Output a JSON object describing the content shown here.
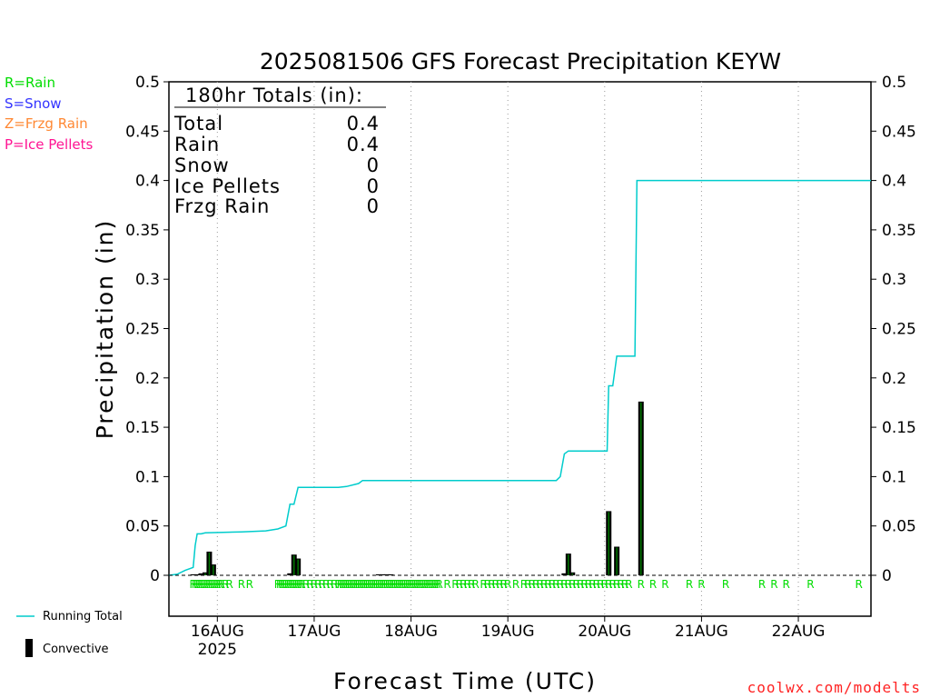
{
  "chart_data": {
    "type": "bar",
    "title": "2025081506 GFS Forecast Precipitation KEYW",
    "xlabel": "Forecast Time (UTC)",
    "ylabel": "Precipitation (in)",
    "ylim": [
      0,
      0.5
    ],
    "yticks": [
      "0",
      "0.05",
      "0.1",
      "0.15",
      "0.2",
      "0.25",
      "0.3",
      "0.35",
      "0.4",
      "0.45",
      "0.5"
    ],
    "xlim_hours": [
      6,
      180
    ],
    "x_units": "forecast hours from 2025-08-15 06 UTC",
    "xticks": [
      {
        "hour": 18,
        "label": "16AUG",
        "sublabel": "2025"
      },
      {
        "hour": 42,
        "label": "17AUG",
        "sublabel": ""
      },
      {
        "hour": 66,
        "label": "18AUG",
        "sublabel": ""
      },
      {
        "hour": 90,
        "label": "19AUG",
        "sublabel": ""
      },
      {
        "hour": 114,
        "label": "20AUG",
        "sublabel": ""
      },
      {
        "hour": 138,
        "label": "21AUG",
        "sublabel": ""
      },
      {
        "hour": 162,
        "label": "22AUG",
        "sublabel": ""
      }
    ],
    "grid": "vertical dotted at day boundaries",
    "running_total": {
      "name": "Running Total",
      "color": "#00cccc",
      "points": [
        [
          6,
          0
        ],
        [
          8,
          0.001
        ],
        [
          10,
          0.005
        ],
        [
          12,
          0.008
        ],
        [
          12.5,
          0.03
        ],
        [
          13,
          0.042
        ],
        [
          14,
          0.042
        ],
        [
          15,
          0.043
        ],
        [
          24,
          0.044
        ],
        [
          30,
          0.045
        ],
        [
          33,
          0.047
        ],
        [
          35,
          0.05
        ],
        [
          36,
          0.072
        ],
        [
          37,
          0.072
        ],
        [
          38,
          0.089
        ],
        [
          40,
          0.089
        ],
        [
          48,
          0.089
        ],
        [
          50,
          0.09
        ],
        [
          53,
          0.093
        ],
        [
          54,
          0.096
        ],
        [
          60,
          0.096
        ],
        [
          70,
          0.096
        ],
        [
          80,
          0.096
        ],
        [
          90,
          0.096
        ],
        [
          102,
          0.096
        ],
        [
          103,
          0.1
        ],
        [
          104,
          0.123
        ],
        [
          105,
          0.126
        ],
        [
          108,
          0.126
        ],
        [
          114,
          0.126
        ],
        [
          114.6,
          0.126
        ],
        [
          115,
          0.192
        ],
        [
          116,
          0.192
        ],
        [
          117,
          0.222
        ],
        [
          121,
          0.222
        ],
        [
          121.5,
          0.222
        ],
        [
          122,
          0.4
        ],
        [
          140,
          0.4
        ],
        [
          160,
          0.4
        ],
        [
          180,
          0.4
        ]
      ]
    },
    "bars": {
      "name": "Convective",
      "color": "#000000",
      "fill": "#007700",
      "points": [
        [
          12,
          0.001
        ],
        [
          13,
          0.001
        ],
        [
          14,
          0.002
        ],
        [
          15,
          0.003
        ],
        [
          16,
          0.024
        ],
        [
          17,
          0.011
        ],
        [
          36,
          0.002
        ],
        [
          37,
          0.021
        ],
        [
          38,
          0.017
        ],
        [
          58,
          0.001
        ],
        [
          59,
          0.001
        ],
        [
          60,
          0.001
        ],
        [
          61,
          0.001
        ],
        [
          104,
          0.002
        ],
        [
          105,
          0.022
        ],
        [
          106,
          0.003
        ],
        [
          115,
          0.065
        ],
        [
          117,
          0.029
        ],
        [
          123,
          0.176
        ]
      ]
    },
    "precip_type_hours": [
      12,
      12.5,
      13,
      13.5,
      14,
      14.5,
      15,
      15.5,
      16,
      16.5,
      17,
      17.5,
      18,
      18.5,
      19,
      20,
      21,
      24,
      26,
      33,
      33.5,
      34,
      34.5,
      35,
      35.5,
      36,
      36.5,
      37,
      37.5,
      38,
      38.5,
      39,
      40,
      41,
      42,
      43,
      44,
      45,
      46,
      47,
      48,
      48.5,
      49,
      49.5,
      50,
      50.5,
      51,
      51.5,
      52,
      52.5,
      53,
      53.5,
      54,
      54.5,
      55,
      55.5,
      56,
      56.5,
      57,
      57.5,
      58,
      58.5,
      59,
      59.5,
      60,
      60.5,
      61,
      61.5,
      62,
      62.5,
      63,
      63.5,
      64,
      64.5,
      65,
      65.5,
      66,
      66.5,
      67,
      67.5,
      68,
      68.5,
      69,
      69.5,
      70,
      70.5,
      71,
      71.5,
      72,
      72.5,
      73,
      75,
      77,
      78,
      79,
      80,
      81,
      82,
      84,
      85,
      86,
      87,
      88,
      89,
      90,
      92,
      94,
      95,
      96,
      97,
      98,
      99,
      100,
      101,
      102,
      103,
      104,
      105,
      106,
      107,
      108,
      109,
      110,
      111,
      112,
      113,
      114,
      115,
      116,
      117,
      118,
      119,
      120,
      123,
      126,
      129,
      135,
      138,
      144,
      153,
      156,
      159,
      165,
      177
    ],
    "precip_type_label": "R"
  },
  "legend_types": [
    {
      "text": "R=Rain",
      "color": "#00dd00"
    },
    {
      "text": "S=Snow",
      "color": "#3333ff"
    },
    {
      "text": "Z=Frzg Rain",
      "color": "#ff8833"
    },
    {
      "text": "P=Ice Pellets",
      "color": "#ff1493"
    }
  ],
  "totals_box": {
    "heading": "180hr Totals (in):",
    "rows": [
      {
        "label": "Total",
        "value": "0.4"
      },
      {
        "label": "Rain",
        "value": "0.4"
      },
      {
        "label": "Snow",
        "value": "0"
      },
      {
        "label": "Ice Pellets",
        "value": "0"
      },
      {
        "label": "Frzg Rain",
        "value": "0"
      }
    ]
  },
  "bottom_legend": {
    "running_total": "Running Total",
    "convective": "Convective"
  },
  "credit": "coolwx.com/modelts"
}
